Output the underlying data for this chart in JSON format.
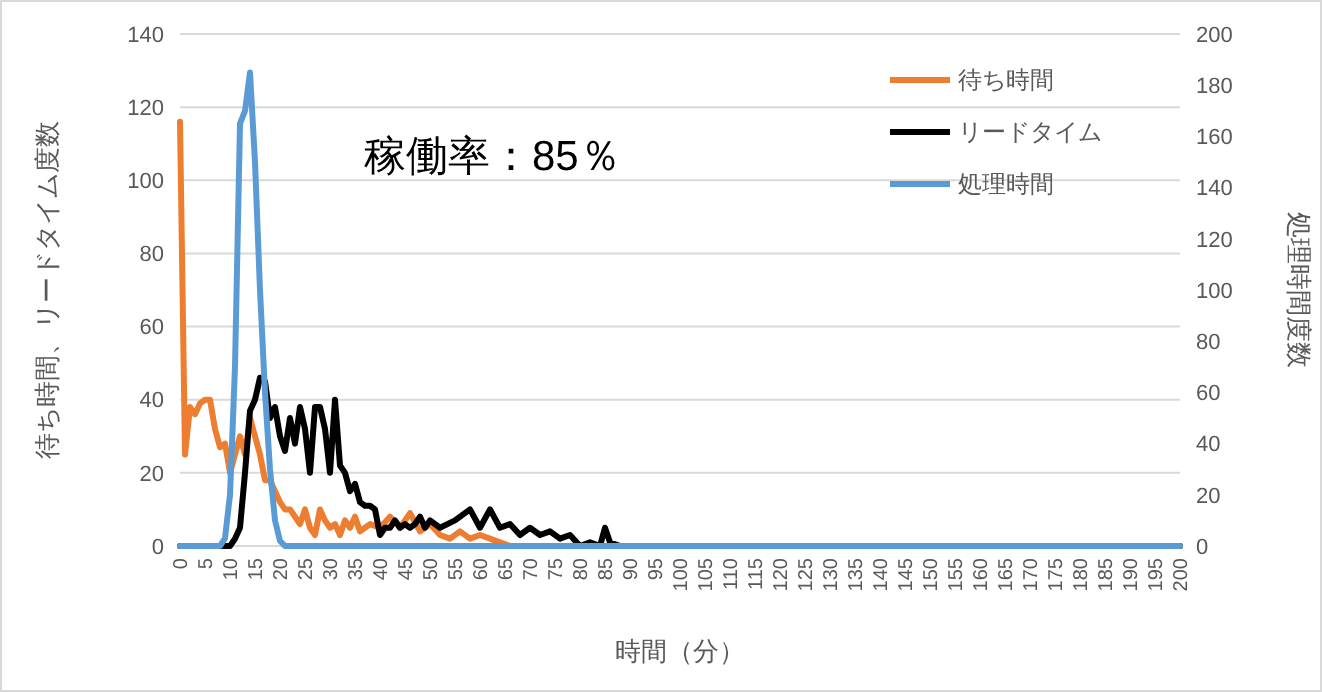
{
  "chart_data": {
    "type": "line",
    "xlabel": "時間（分）",
    "ylabel": "待ち時間、リードタイム度数",
    "y2label": "処理時間度数",
    "annotations": [
      "稼働率：85％"
    ],
    "xlim": [
      0,
      200
    ],
    "xticks": [
      0,
      5,
      10,
      15,
      20,
      25,
      30,
      35,
      40,
      45,
      50,
      55,
      60,
      65,
      70,
      75,
      80,
      85,
      90,
      95,
      100,
      105,
      110,
      115,
      120,
      125,
      130,
      135,
      140,
      145,
      150,
      155,
      160,
      165,
      170,
      175,
      180,
      185,
      190,
      195,
      200
    ],
    "ylim": [
      0,
      140
    ],
    "yticks": [
      0,
      20,
      40,
      60,
      80,
      100,
      120,
      140
    ],
    "y2lim": [
      0,
      200
    ],
    "y2ticks": [
      0,
      20,
      40,
      60,
      80,
      100,
      120,
      140,
      160,
      180,
      200
    ],
    "grid": "y",
    "legend": "top right",
    "line_style": "solid",
    "marker": "none",
    "series": [
      {
        "name": "待ち時間",
        "color": "#ed7d31",
        "x": [
          0,
          1,
          2,
          3,
          4,
          5,
          6,
          7,
          8,
          9,
          10,
          11,
          12,
          13,
          14,
          15,
          16,
          17,
          18,
          19,
          20,
          21,
          22,
          23,
          24,
          25,
          26,
          27,
          28,
          29,
          30,
          31,
          32,
          33,
          34,
          35,
          36,
          37,
          38,
          40,
          42,
          44,
          46,
          48,
          50,
          52,
          54,
          56,
          58,
          60,
          62,
          64,
          66,
          200
        ],
        "values": [
          116,
          25,
          38,
          36,
          39,
          40,
          40,
          32,
          27,
          28,
          20,
          25,
          30,
          25,
          35,
          30,
          25,
          18,
          18,
          15,
          12,
          10,
          10,
          8,
          6,
          10,
          5,
          3,
          10,
          7,
          5,
          6,
          3,
          7,
          5,
          8,
          4,
          5,
          6,
          5,
          8,
          5,
          9,
          4,
          6,
          3,
          2,
          4,
          2,
          3,
          2,
          1,
          0,
          0
        ]
      },
      {
        "name": "リードタイム",
        "color": "#000000",
        "x": [
          0,
          10,
          11,
          12,
          13,
          14,
          15,
          16,
          17,
          18,
          19,
          20,
          21,
          22,
          23,
          24,
          25,
          26,
          27,
          28,
          29,
          30,
          31,
          32,
          33,
          34,
          35,
          36,
          37,
          38,
          39,
          40,
          41,
          42,
          43,
          44,
          45,
          46,
          47,
          48,
          49,
          50,
          52,
          55,
          58,
          60,
          62,
          64,
          66,
          68,
          70,
          72,
          74,
          76,
          78,
          80,
          82,
          84,
          85,
          86,
          88,
          200
        ],
        "values": [
          0,
          0,
          2,
          5,
          20,
          37,
          40,
          46,
          45,
          35,
          38,
          30,
          26,
          35,
          28,
          38,
          32,
          20,
          38,
          38,
          32,
          20,
          40,
          22,
          20,
          15,
          17,
          12,
          11,
          11,
          10,
          3,
          5,
          5,
          7,
          5,
          6,
          5,
          6,
          8,
          5,
          7,
          5,
          7,
          10,
          5,
          10,
          5,
          6,
          3,
          5,
          3,
          4,
          2,
          3,
          0,
          1,
          0,
          5,
          1,
          0,
          0
        ]
      },
      {
        "name": "処理時間",
        "color": "#5b9bd5",
        "axis": "y2",
        "x": [
          0,
          8,
          9,
          10,
          11,
          12,
          13,
          14,
          15,
          16,
          17,
          18,
          19,
          20,
          21,
          22,
          200
        ],
        "values": [
          0,
          0,
          3,
          20,
          70,
          165,
          170,
          185,
          150,
          100,
          60,
          30,
          10,
          2,
          0,
          0,
          0
        ]
      }
    ]
  }
}
